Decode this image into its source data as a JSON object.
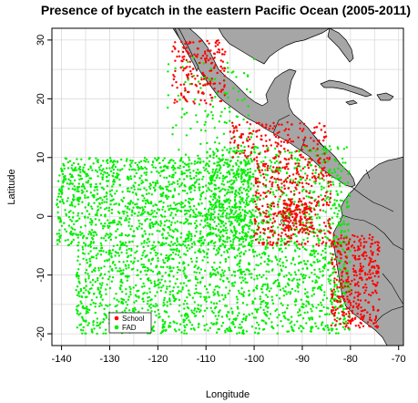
{
  "title": "Presence of bycatch in the eastern Pacific Ocean (2005-2011)",
  "xlabel": "Longitude",
  "ylabel": "Latitude",
  "xlim": [
    -142,
    -69
  ],
  "ylim": [
    -22,
    32
  ],
  "x_ticks": [
    -140,
    -130,
    -120,
    -110,
    -100,
    -90,
    -80,
    -70
  ],
  "y_ticks": [
    -20,
    -10,
    0,
    10,
    20,
    30
  ],
  "grid": true,
  "legend_position": "bottom-left",
  "colors": {
    "land": "#a6a6a6",
    "ocean": "#ffffff",
    "grid": "#d9d9d9",
    "school": "#ff0000",
    "fad": "#00ee00"
  },
  "legend": [
    {
      "label": "School",
      "color": "#ff0000"
    },
    {
      "label": "FAD",
      "color": "#00ee00"
    }
  ],
  "chart_data": {
    "type": "scatter",
    "title": "Presence of bycatch in the eastern Pacific Ocean (2005-2011)",
    "xlabel": "Longitude",
    "ylabel": "Latitude",
    "xlim": [
      -142,
      -69
    ],
    "ylim": [
      -22,
      32
    ],
    "series": [
      {
        "name": "FAD",
        "color": "#00ee00",
        "regions": [
          {
            "lon": [
              -141,
              -100
            ],
            "lat": [
              -5,
              10
            ]
          },
          {
            "lon": [
              -137,
              -80
            ],
            "lat": [
              -20,
              -5
            ]
          },
          {
            "lon": [
              -110,
              -80
            ],
            "lat": [
              -5,
              12
            ]
          },
          {
            "lon": [
              -118,
              -100
            ],
            "lat": [
              10,
              27
            ]
          }
        ]
      },
      {
        "name": "School",
        "color": "#ff0000",
        "regions": [
          {
            "lon": [
              -117,
              -106
            ],
            "lat": [
              19,
              30
            ]
          },
          {
            "lon": [
              -105,
              -85
            ],
            "lat": [
              10,
              16
            ]
          },
          {
            "lon": [
              -100,
              -84
            ],
            "lat": [
              -5,
              10
            ]
          },
          {
            "lon": [
              -84,
              -74
            ],
            "lat": [
              -19,
              -3
            ]
          },
          {
            "lon": [
              -94,
              -88
            ],
            "lat": [
              -3,
              3
            ]
          }
        ]
      }
    ]
  }
}
